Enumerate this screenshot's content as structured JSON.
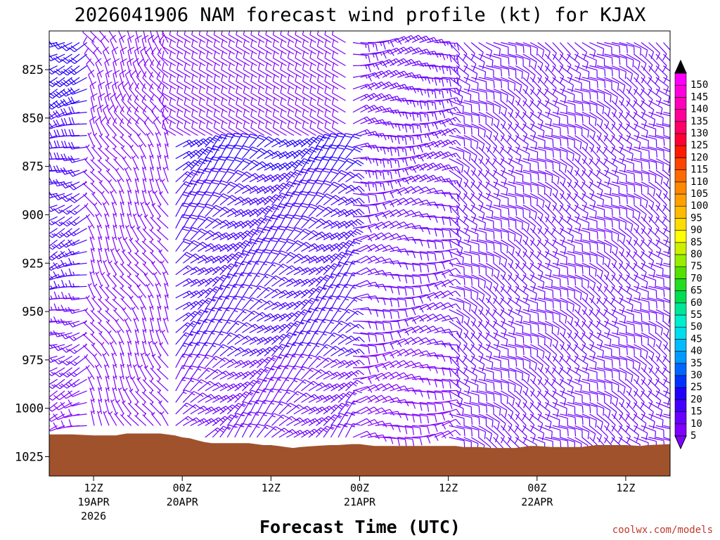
{
  "chart_data": {
    "type": "wind-barb-time-height",
    "title": "2026041906 NAM forecast wind profile (kt) for KJAX",
    "xlabel": "Forecast Time (UTC)",
    "ylabel": "",
    "y_units": "hPa",
    "y_range": [
      1035,
      805
    ],
    "y_ticks": [
      825,
      850,
      875,
      900,
      925,
      950,
      975,
      1000,
      1025
    ],
    "x_range_hours": [
      0,
      84
    ],
    "x_ticks": [
      {
        "hour": 6,
        "label": "12Z",
        "date": "19APR",
        "year": "2026"
      },
      {
        "hour": 18,
        "label": "00Z",
        "date": "20APR",
        "year": ""
      },
      {
        "hour": 30,
        "label": "12Z",
        "date": "",
        "year": ""
      },
      {
        "hour": 42,
        "label": "00Z",
        "date": "21APR",
        "year": ""
      },
      {
        "hour": 54,
        "label": "12Z",
        "date": "",
        "year": ""
      },
      {
        "hour": 66,
        "label": "00Z",
        "date": "22APR",
        "year": ""
      },
      {
        "hour": 78,
        "label": "12Z",
        "date": "",
        "year": ""
      }
    ],
    "colorbar": {
      "units": "kt",
      "levels": [
        5,
        10,
        15,
        20,
        25,
        30,
        35,
        40,
        45,
        50,
        55,
        60,
        65,
        70,
        75,
        80,
        85,
        90,
        95,
        100,
        105,
        110,
        115,
        120,
        125,
        130,
        135,
        140,
        145,
        150
      ],
      "colors": [
        "#7f00ff",
        "#6a00ff",
        "#4400ff",
        "#2200ff",
        "#0033ff",
        "#0066ff",
        "#0099ff",
        "#00bbff",
        "#00ddee",
        "#00eecc",
        "#00e699",
        "#00dd55",
        "#22dd22",
        "#55e000",
        "#99ee00",
        "#ccf000",
        "#ffff00",
        "#ffdd00",
        "#ffbb00",
        "#ffa000",
        "#ff8800",
        "#ff6a00",
        "#ff4400",
        "#ff1a00",
        "#ff0033",
        "#ff0066",
        "#ff0099",
        "#ff00bb",
        "#ff00dd",
        "#ff00ff"
      ]
    },
    "surface_pressure": {
      "hours": [
        0,
        3,
        6,
        9,
        10.5,
        12,
        15,
        17,
        18,
        19,
        20,
        21,
        22,
        24,
        27,
        28,
        29,
        30,
        31,
        32,
        33,
        34,
        36,
        38,
        39,
        41,
        42,
        43,
        44,
        45,
        48,
        51,
        53,
        54,
        55,
        56,
        57,
        58,
        60,
        62,
        63,
        64,
        65,
        66,
        68,
        71,
        72,
        74,
        75,
        77,
        78,
        80,
        81,
        84
      ],
      "values": [
        1013.5,
        1013.5,
        1014.0,
        1014.0,
        1013.0,
        1013.0,
        1013.0,
        1014.0,
        1015.0,
        1015.5,
        1016.5,
        1017.5,
        1018.0,
        1018.0,
        1018.0,
        1018.5,
        1019.0,
        1019.0,
        1019.5,
        1020.0,
        1020.5,
        1020.0,
        1019.5,
        1019.0,
        1019.0,
        1018.5,
        1018.5,
        1019.0,
        1019.5,
        1019.5,
        1019.5,
        1019.5,
        1019.5,
        1019.5,
        1019.5,
        1020.0,
        1020.0,
        1020.0,
        1020.5,
        1020.5,
        1020.5,
        1020.0,
        1019.5,
        1019.5,
        1020.0,
        1020.0,
        1020.0,
        1019.0,
        1019.0,
        1019.0,
        1019.0,
        1019.5,
        1019.0,
        1018.5
      ]
    },
    "ground_color": "#a0522d",
    "barb_interval_hours": 1,
    "barb_interval_hpa": 6,
    "wind_regimes": [
      {
        "hours": [
          0,
          6
        ],
        "dir_deg": 250,
        "speed_kt": [
          22,
          10
        ],
        "note": "west-southwest winds, strongest aloft"
      },
      {
        "hours": [
          6,
          17
        ],
        "dir_deg": 330,
        "speed_kt": [
          8,
          6
        ],
        "note": "light northwest winds"
      },
      {
        "hours": [
          17,
          41
        ],
        "dir_deg": 45,
        "speed_kt": [
          24,
          12
        ],
        "note": "northeast winds 20-25 kt in 900-975 hPa layer"
      },
      {
        "hours": [
          41,
          54
        ],
        "dir_deg": 80,
        "speed_kt": [
          15,
          8
        ],
        "note": "easterly winds, weaker near surface"
      },
      {
        "hours": [
          54,
          84
        ],
        "dir_deg": 120,
        "speed_kt": [
          12,
          10
        ],
        "note": "east-southeast winds"
      }
    ]
  },
  "credit": "coolwx.com/models"
}
